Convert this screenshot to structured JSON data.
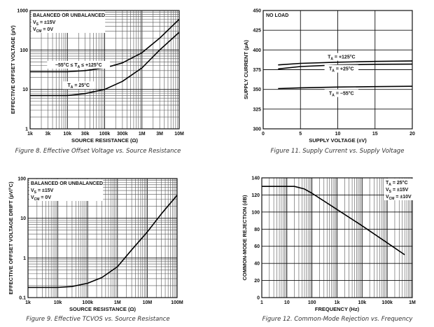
{
  "chart_data": [
    {
      "id": "fig8",
      "type": "line",
      "caption": "Figure 8. Effective Offset Voltage vs. Source Resistance",
      "xlabel": "SOURCE RESISTANCE (Ω)",
      "ylabel": "EFFECTIVE OFFSET VOLTAGE (µV)",
      "xscale": "log",
      "yscale": "log",
      "xlim": [
        1000,
        10000000
      ],
      "ylim": [
        1,
        1000
      ],
      "xticks": [
        [
          1000,
          "1k"
        ],
        [
          3000,
          "3k"
        ],
        [
          10000,
          "10k"
        ],
        [
          30000,
          "30k"
        ],
        [
          100000,
          "100k"
        ],
        [
          300000,
          "300k"
        ],
        [
          1000000,
          "1M"
        ],
        [
          3000000,
          "3M"
        ],
        [
          10000000,
          "10M"
        ]
      ],
      "yticks": [
        [
          1,
          "1"
        ],
        [
          10,
          "10"
        ],
        [
          100,
          "100"
        ],
        [
          1000,
          "1000"
        ]
      ],
      "annotations": [
        {
          "lines": [
            [
              [
                "BALANCED OR UNBALANCED",
                ""
              ]
            ],
            [
              [
                "V",
                ""
              ],
              [
                "S",
                "sub"
              ],
              [
                " = ±15V",
                ""
              ]
            ],
            [
              [
                "V",
                ""
              ],
              [
                "CM",
                "sub"
              ],
              [
                " = 0V",
                ""
              ]
            ]
          ],
          "pos": "top-left"
        },
        {
          "lines": [
            [
              [
                "−55°C ≤ T",
                ""
              ],
              [
                "A",
                "sub"
              ],
              [
                " ≤ +125°C",
                ""
              ]
            ]
          ],
          "at": [
            20000,
            38
          ]
        },
        {
          "lines": [
            [
              [
                "T",
                ""
              ],
              [
                "A",
                "sub"
              ],
              [
                " = 25°C",
                ""
              ]
            ]
          ],
          "at": [
            20000,
            11.5
          ]
        }
      ],
      "series": [
        {
          "name": "−55°C ≤ TA ≤ +125°C",
          "x": [
            1000,
            10000,
            30000,
            100000,
            300000,
            1000000,
            3000000,
            10000000
          ],
          "y": [
            28,
            28,
            30,
            35,
            47,
            85,
            200,
            600
          ]
        },
        {
          "name": "TA = 25°C",
          "x": [
            1000,
            10000,
            30000,
            100000,
            300000,
            1000000,
            3000000,
            10000000
          ],
          "y": [
            7,
            7,
            7.8,
            10,
            16,
            35,
            100,
            280
          ]
        }
      ]
    },
    {
      "id": "fig11",
      "type": "line",
      "caption": "Figure 11. Supply Current vs. Supply Voltage",
      "xlabel": "SUPPLY VOLTAGE (±V)",
      "ylabel": "SUPPLY CURRENT (µA)",
      "xscale": "linear",
      "yscale": "linear",
      "xlim": [
        0,
        20
      ],
      "ylim": [
        300,
        450
      ],
      "xticks": [
        [
          0,
          "0"
        ],
        [
          5,
          "5"
        ],
        [
          10,
          "10"
        ],
        [
          15,
          "15"
        ],
        [
          20,
          "20"
        ]
      ],
      "yticks": [
        [
          300,
          "300"
        ],
        [
          325,
          "325"
        ],
        [
          350,
          "350"
        ],
        [
          375,
          "375"
        ],
        [
          400,
          "400"
        ],
        [
          425,
          "425"
        ],
        [
          450,
          "450"
        ]
      ],
      "annotations": [
        {
          "lines": [
            [
              [
                "NO LOAD",
                ""
              ]
            ]
          ],
          "pos": "top-left"
        },
        {
          "lines": [
            [
              [
                "T",
                ""
              ],
              [
                "A",
                "sub"
              ],
              [
                " = +125°C",
                ""
              ]
            ]
          ],
          "at": [
            10.5,
            389
          ]
        },
        {
          "lines": [
            [
              [
                "T",
                ""
              ],
              [
                "A",
                "sub"
              ],
              [
                " = +25°C",
                ""
              ]
            ]
          ],
          "at": [
            10.5,
            374
          ]
        },
        {
          "lines": [
            [
              [
                "T",
                ""
              ],
              [
                "A",
                "sub"
              ],
              [
                " = −55°C",
                ""
              ]
            ]
          ],
          "at": [
            10.5,
            343
          ]
        }
      ],
      "series": [
        {
          "name": "TA = +125°C",
          "x": [
            2,
            5,
            10,
            15,
            20
          ],
          "y": [
            381,
            383,
            384.5,
            385.5,
            386
          ]
        },
        {
          "name": "TA = +25°C",
          "x": [
            2,
            5,
            10,
            15,
            20
          ],
          "y": [
            376,
            379,
            381,
            381.8,
            382
          ]
        },
        {
          "name": "TA = −55°C",
          "x": [
            2,
            5,
            10,
            15,
            20
          ],
          "y": [
            351,
            352,
            353,
            353.5,
            354
          ]
        }
      ]
    },
    {
      "id": "fig9",
      "type": "line",
      "caption": "Figure 9. Effective TCVOS vs. Source Resistance",
      "xlabel": "SOURCE RESISTANCE (Ω)",
      "ylabel": "EFFECTIVE OFFSET VOLTAGE DRIFT (µV/°C)",
      "xscale": "log",
      "yscale": "log",
      "xlim": [
        1000,
        100000000
      ],
      "ylim": [
        0.1,
        100
      ],
      "xticks": [
        [
          1000,
          "1k"
        ],
        [
          10000,
          "10k"
        ],
        [
          100000,
          "100k"
        ],
        [
          1000000,
          "1M"
        ],
        [
          10000000,
          "10M"
        ],
        [
          100000000,
          "100M"
        ]
      ],
      "yticks": [
        [
          0.1,
          "0.1"
        ],
        [
          1,
          "1"
        ],
        [
          10,
          "10"
        ],
        [
          100,
          "100"
        ]
      ],
      "annotations": [
        {
          "lines": [
            [
              [
                "BALANCED OR UNBALANCED",
                ""
              ]
            ],
            [
              [
                "V",
                ""
              ],
              [
                "S",
                "sub"
              ],
              [
                " = ±15V",
                ""
              ]
            ],
            [
              [
                "V",
                ""
              ],
              [
                "CM",
                "sub"
              ],
              [
                " = 0V",
                ""
              ]
            ]
          ],
          "pos": "top-left"
        }
      ],
      "series": [
        {
          "name": "TCVOS",
          "x": [
            1000,
            10000,
            30000,
            100000,
            300000,
            1000000,
            3000000,
            10000000,
            30000000,
            100000000
          ],
          "y": [
            0.18,
            0.18,
            0.19,
            0.23,
            0.32,
            0.6,
            1.6,
            4.5,
            13,
            38
          ]
        }
      ]
    },
    {
      "id": "fig12",
      "type": "line",
      "caption": "Figure 12. Common-Mode Rejection vs. Frequency",
      "xlabel": "FREQUENCY (Hz)",
      "ylabel": "COMMON-MODE REJECTION (dB)",
      "xscale": "log",
      "yscale": "linear",
      "xlim": [
        1,
        1000000
      ],
      "ylim": [
        0,
        140
      ],
      "xticks": [
        [
          1,
          "1"
        ],
        [
          10,
          "10"
        ],
        [
          100,
          "100"
        ],
        [
          1000,
          "1k"
        ],
        [
          10000,
          "10k"
        ],
        [
          100000,
          "100k"
        ],
        [
          1000000,
          "1M"
        ]
      ],
      "yticks": [
        [
          0,
          "0"
        ],
        [
          20,
          "20"
        ],
        [
          40,
          "40"
        ],
        [
          60,
          "60"
        ],
        [
          80,
          "80"
        ],
        [
          100,
          "100"
        ],
        [
          120,
          "120"
        ],
        [
          140,
          "140"
        ]
      ],
      "annotations": [
        {
          "lines": [
            [
              [
                "T",
                ""
              ],
              [
                "A",
                "sub"
              ],
              [
                " = 25°C",
                ""
              ]
            ],
            [
              [
                "V",
                ""
              ],
              [
                "S",
                "sub"
              ],
              [
                " = ±15V",
                ""
              ]
            ],
            [
              [
                "V",
                ""
              ],
              [
                "CM",
                "sub"
              ],
              [
                " = ±10V",
                ""
              ]
            ]
          ],
          "pos": "top-right"
        }
      ],
      "series": [
        {
          "name": "CMR",
          "x": [
            1,
            20,
            50,
            100,
            1000,
            10000,
            100000,
            500000
          ],
          "y": [
            130,
            130,
            127,
            122,
            103,
            84,
            64,
            50
          ]
        }
      ]
    }
  ]
}
